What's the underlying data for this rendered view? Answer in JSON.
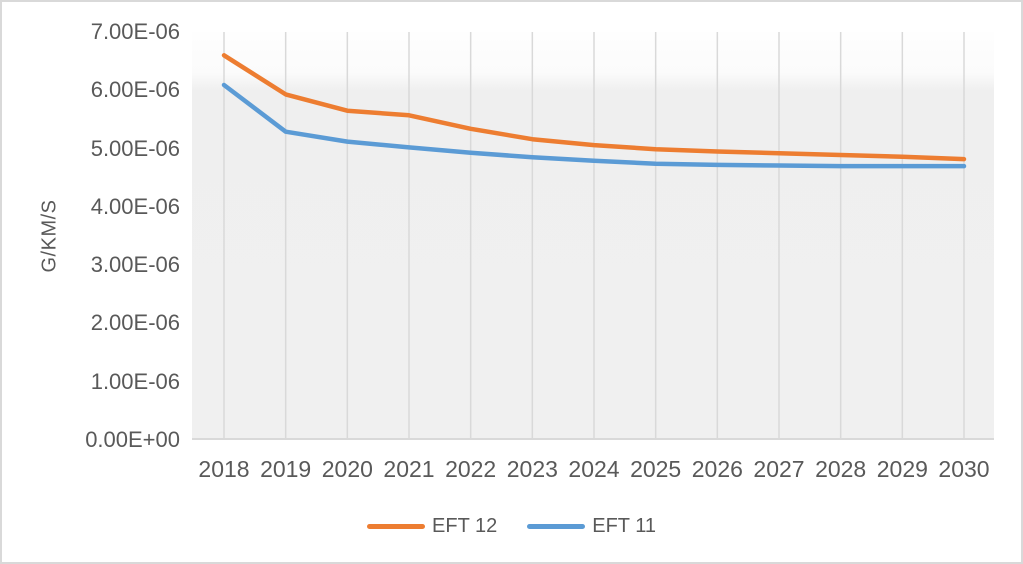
{
  "frame": {
    "background": "#ffffff",
    "border_color": "#d9d9d9",
    "text_color": "#595959"
  },
  "chart_data": {
    "type": "line",
    "title": "",
    "xlabel": "",
    "ylabel": "G/KM/S",
    "categories": [
      "2018",
      "2019",
      "2020",
      "2021",
      "2022",
      "2023",
      "2024",
      "2025",
      "2026",
      "2027",
      "2028",
      "2029",
      "2030"
    ],
    "series": [
      {
        "name": "EFT 12",
        "color": "#ED7D31",
        "values": [
          6.6e-06,
          5.93e-06,
          5.65e-06,
          5.57e-06,
          5.34e-06,
          5.16e-06,
          5.06e-06,
          4.99e-06,
          4.95e-06,
          4.92e-06,
          4.89e-06,
          4.86e-06,
          4.82e-06
        ]
      },
      {
        "name": "EFT 11",
        "color": "#5B9BD5",
        "values": [
          6.09e-06,
          5.29e-06,
          5.12e-06,
          5.02e-06,
          4.93e-06,
          4.85e-06,
          4.79e-06,
          4.74e-06,
          4.72e-06,
          4.71e-06,
          4.7e-06,
          4.7e-06,
          4.7e-06
        ]
      }
    ],
    "y_tick_labels_top_to_bottom": [
      "7.00E-06",
      "6.00E-06",
      "5.00E-06",
      "4.00E-06",
      "3.00E-06",
      "2.00E-06",
      "1.00E-06",
      "0.00E+00"
    ],
    "ylim": [
      0,
      7e-06
    ],
    "grid": "vertical-major-only",
    "gridline_color": "#d9d9d9",
    "axis_line_color": "#d9d9d9",
    "legend_position": "bottom"
  }
}
